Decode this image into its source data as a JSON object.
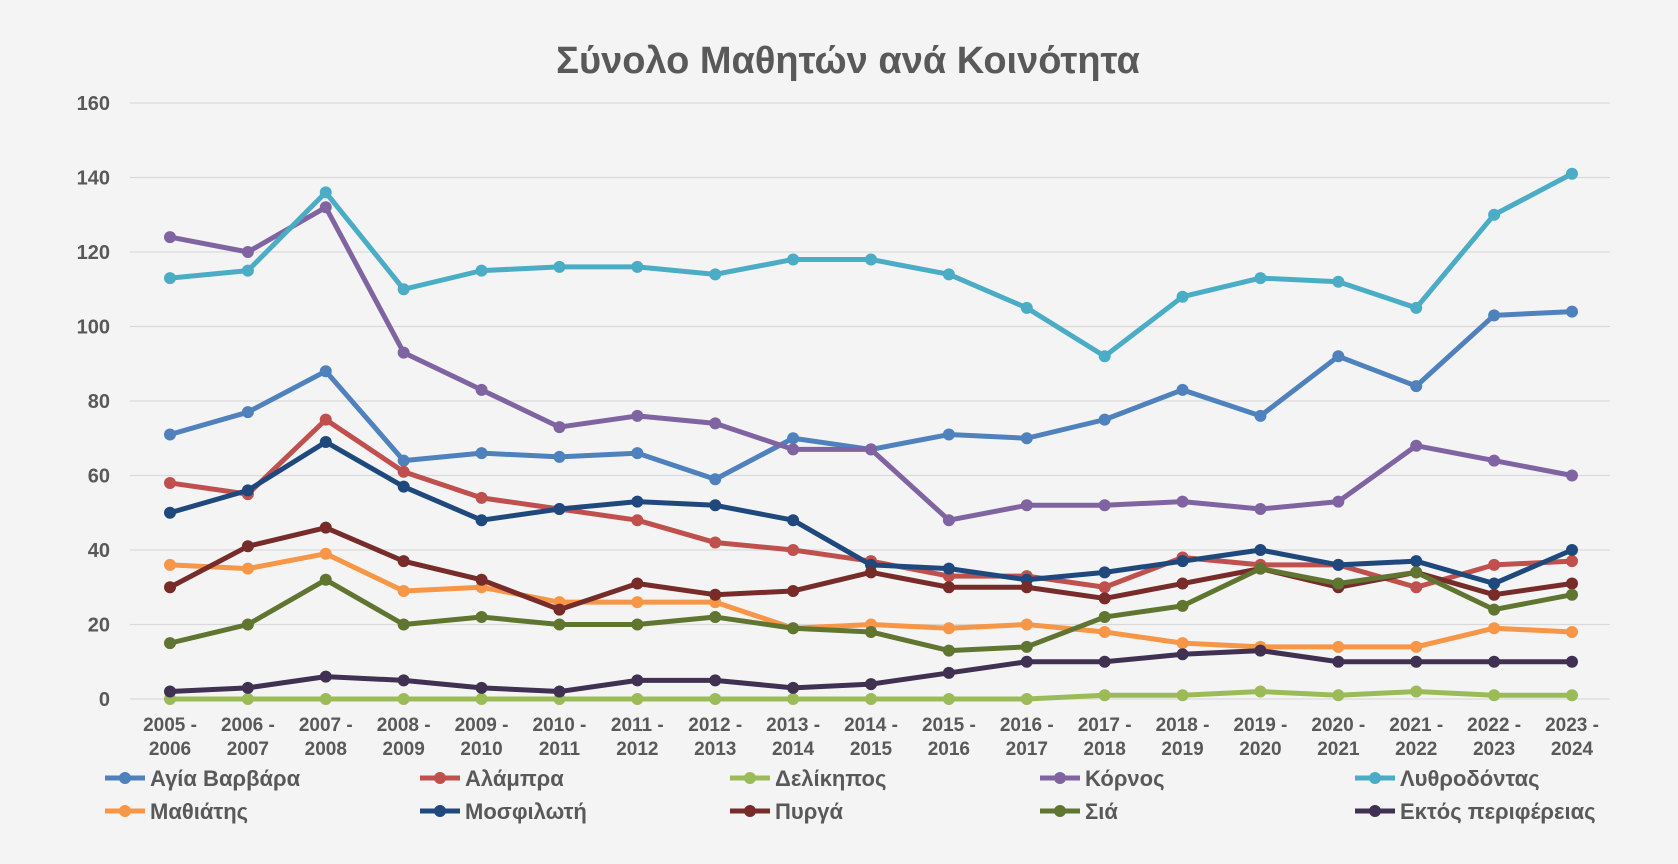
{
  "chart_data": {
    "type": "line",
    "title": "Σύνολο Μαθητών ανά Κοινότητα",
    "xlabel": "",
    "ylabel": "",
    "ylim": [
      0,
      160
    ],
    "yticks": [
      0,
      20,
      40,
      60,
      80,
      100,
      120,
      140,
      160
    ],
    "grid": true,
    "legend_position": "bottom",
    "categories": [
      [
        "2005 -",
        "2006"
      ],
      [
        "2006 -",
        "2007"
      ],
      [
        "2007 -",
        "2008"
      ],
      [
        "2008 -",
        "2009"
      ],
      [
        "2009 -",
        "2010"
      ],
      [
        "2010 -",
        "2011"
      ],
      [
        "2011 -",
        "2012"
      ],
      [
        "2012 -",
        "2013"
      ],
      [
        "2013 -",
        "2014"
      ],
      [
        "2014 -",
        "2015"
      ],
      [
        "2015 -",
        "2016"
      ],
      [
        "2016 -",
        "2017"
      ],
      [
        "2017 -",
        "2018"
      ],
      [
        "2018 -",
        "2019"
      ],
      [
        "2019 -",
        "2020"
      ],
      [
        "2020 -",
        "2021"
      ],
      [
        "2021 -",
        "2022"
      ],
      [
        "2022 -",
        "2023"
      ],
      [
        "2023 -",
        "2024"
      ]
    ],
    "series": [
      {
        "name": "Αγία Βαρβάρα",
        "color": "#4f81bd",
        "values": [
          71,
          77,
          88,
          64,
          66,
          65,
          66,
          59,
          70,
          67,
          71,
          70,
          75,
          83,
          76,
          92,
          84,
          103,
          104
        ]
      },
      {
        "name": "Αλάμπρα",
        "color": "#c0504d",
        "values": [
          58,
          55,
          75,
          61,
          54,
          51,
          48,
          42,
          40,
          37,
          33,
          33,
          30,
          38,
          36,
          36,
          30,
          36,
          37
        ]
      },
      {
        "name": "Δελίκηπος",
        "color": "#9bbb59",
        "values": [
          0,
          0,
          0,
          0,
          0,
          0,
          0,
          0,
          0,
          0,
          0,
          0,
          1,
          1,
          2,
          1,
          2,
          1,
          1
        ]
      },
      {
        "name": "Κόρνος",
        "color": "#8064a2",
        "values": [
          124,
          120,
          132,
          93,
          83,
          73,
          76,
          74,
          67,
          67,
          48,
          52,
          52,
          53,
          51,
          53,
          68,
          64,
          60
        ]
      },
      {
        "name": "Λυθροδόντας",
        "color": "#4bacc6",
        "values": [
          113,
          115,
          136,
          110,
          115,
          116,
          116,
          114,
          118,
          118,
          114,
          105,
          92,
          108,
          113,
          112,
          105,
          130,
          141
        ]
      },
      {
        "name": "Μαθιάτης",
        "color": "#f79646",
        "values": [
          36,
          35,
          39,
          29,
          30,
          26,
          26,
          26,
          19,
          20,
          19,
          20,
          18,
          15,
          14,
          14,
          14,
          19,
          18
        ]
      },
      {
        "name": "Μοσφιλωτή",
        "color": "#1f497d",
        "values": [
          50,
          56,
          69,
          57,
          48,
          51,
          53,
          52,
          48,
          36,
          35,
          32,
          34,
          37,
          40,
          36,
          37,
          31,
          40
        ]
      },
      {
        "name": "Πυργά",
        "color": "#772c2a",
        "values": [
          30,
          41,
          46,
          37,
          32,
          24,
          31,
          28,
          29,
          34,
          30,
          30,
          27,
          31,
          35,
          30,
          34,
          28,
          31
        ]
      },
      {
        "name": "Σιά",
        "color": "#5f7530",
        "values": [
          15,
          20,
          32,
          20,
          22,
          20,
          20,
          22,
          19,
          18,
          13,
          14,
          22,
          25,
          35,
          31,
          34,
          24,
          28
        ]
      },
      {
        "name": "Εκτός περιφέρειας",
        "color": "#403152",
        "values": [
          2,
          3,
          6,
          5,
          3,
          2,
          5,
          5,
          3,
          4,
          7,
          10,
          10,
          12,
          13,
          10,
          10,
          10,
          10
        ]
      }
    ]
  }
}
